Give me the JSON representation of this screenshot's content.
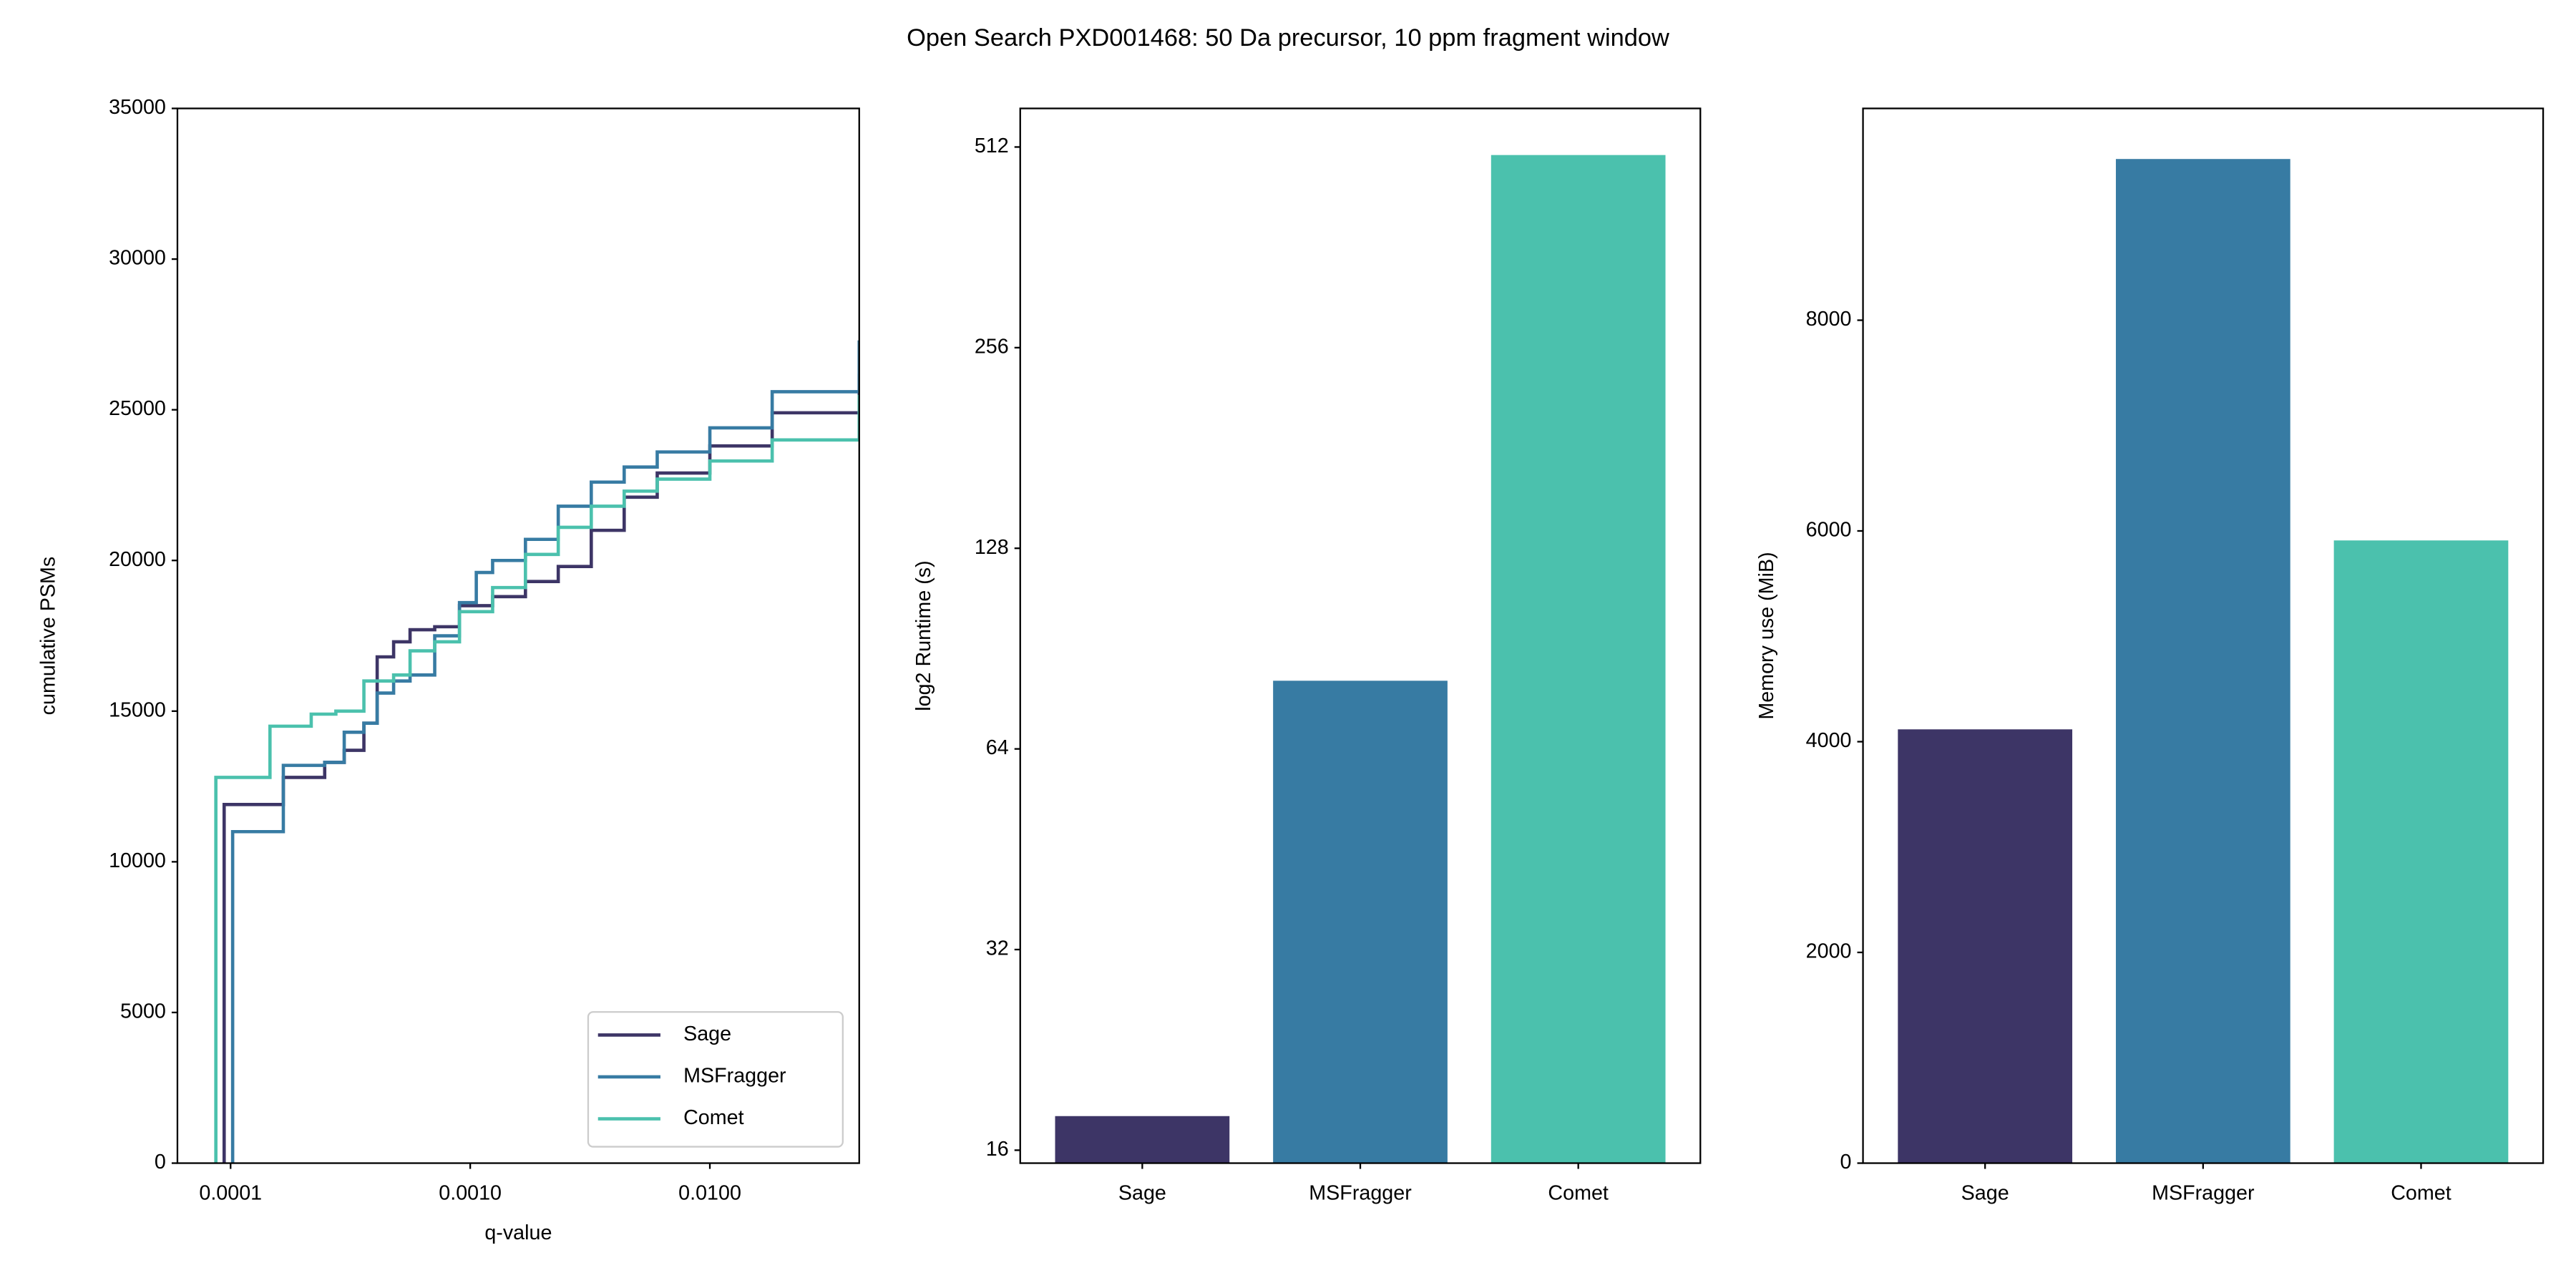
{
  "title": "Open Search PXD001468: 50 Da precursor, 10 ppm fragment window",
  "chart_data": [
    {
      "type": "line",
      "xlabel": "q-value",
      "ylabel": "cumulative PSMs",
      "xscale": "log",
      "drawstyle": "steps-post",
      "xlim": [
        6e-05,
        0.042
      ],
      "xticks": [
        0.0001,
        {
          "value": 0.001,
          "label": "0.0010"
        },
        {
          "value": 0.01,
          "label": "0.0100"
        }
      ],
      "ylim": [
        0,
        35000
      ],
      "yticks": [
        0,
        5000,
        10000,
        15000,
        20000,
        25000,
        30000,
        35000
      ],
      "legend": "lower right",
      "series": [
        {
          "name": "Sage",
          "color": "#3d3566",
          "x": [
            9.4e-05,
            9.4e-05,
            0.000166,
            0.000247,
            0.000298,
            0.00036,
            0.000409,
            0.000479,
            0.000561,
            0.000711,
            0.000902,
            0.00124,
            0.0017,
            0.00233,
            0.0032,
            0.00439,
            0.00603,
            0.01,
            0.0182,
            0.042
          ],
          "values": [
            0,
            11900,
            12800,
            13300,
            13700,
            14600,
            16800,
            17300,
            17700,
            17800,
            18500,
            18800,
            19300,
            19800,
            21000,
            22100,
            22900,
            23800,
            24900,
            26200
          ]
        },
        {
          "name": "MSFragger",
          "color": "#377ba3",
          "x": [
            0.000102,
            0.000102,
            0.000166,
            0.000247,
            0.000298,
            0.00036,
            0.000409,
            0.000479,
            0.000561,
            0.000711,
            0.000902,
            0.00106,
            0.00124,
            0.0017,
            0.00233,
            0.0032,
            0.00439,
            0.00603,
            0.01,
            0.0182,
            0.042
          ],
          "values": [
            0,
            11000,
            13200,
            13300,
            14300,
            14600,
            15600,
            16000,
            16200,
            17500,
            18600,
            19600,
            20000,
            20700,
            21800,
            22600,
            23100,
            23600,
            24400,
            25600,
            27300
          ]
        },
        {
          "name": "Comet",
          "color": "#4bc1ad",
          "x": [
            8.68e-05,
            8.68e-05,
            0.000146,
            0.000217,
            0.000275,
            0.00036,
            0.000479,
            0.000561,
            0.000711,
            0.000902,
            0.00124,
            0.0017,
            0.00233,
            0.0032,
            0.00439,
            0.00603,
            0.01,
            0.0182,
            0.042
          ],
          "values": [
            0,
            12800,
            14500,
            14900,
            15000,
            16000,
            16200,
            17000,
            17300,
            18300,
            19100,
            20200,
            21100,
            21800,
            22300,
            22700,
            23300,
            24000,
            25500
          ]
        }
      ]
    },
    {
      "type": "bar",
      "ylabel": "log2 Runtime (s)",
      "yscale": "log",
      "categories": [
        "Sage",
        "MSFragger",
        "Comet"
      ],
      "values": [
        18,
        81,
        498
      ],
      "colors": [
        "#3d3566",
        "#377ba3",
        "#4bc1ad"
      ],
      "ylim": [
        15.3,
        585
      ],
      "yticks": [
        16,
        32,
        64,
        128,
        256,
        512
      ]
    },
    {
      "type": "bar",
      "ylabel": "Memory use (MiB)",
      "categories": [
        "Sage",
        "MSFragger",
        "Comet"
      ],
      "values": [
        4117,
        9530,
        5910
      ],
      "colors": [
        "#3d3566",
        "#377ba3",
        "#4bc1ad"
      ],
      "ylim": [
        0,
        10010
      ],
      "yticks": [
        0,
        2000,
        4000,
        6000,
        8000
      ]
    }
  ]
}
